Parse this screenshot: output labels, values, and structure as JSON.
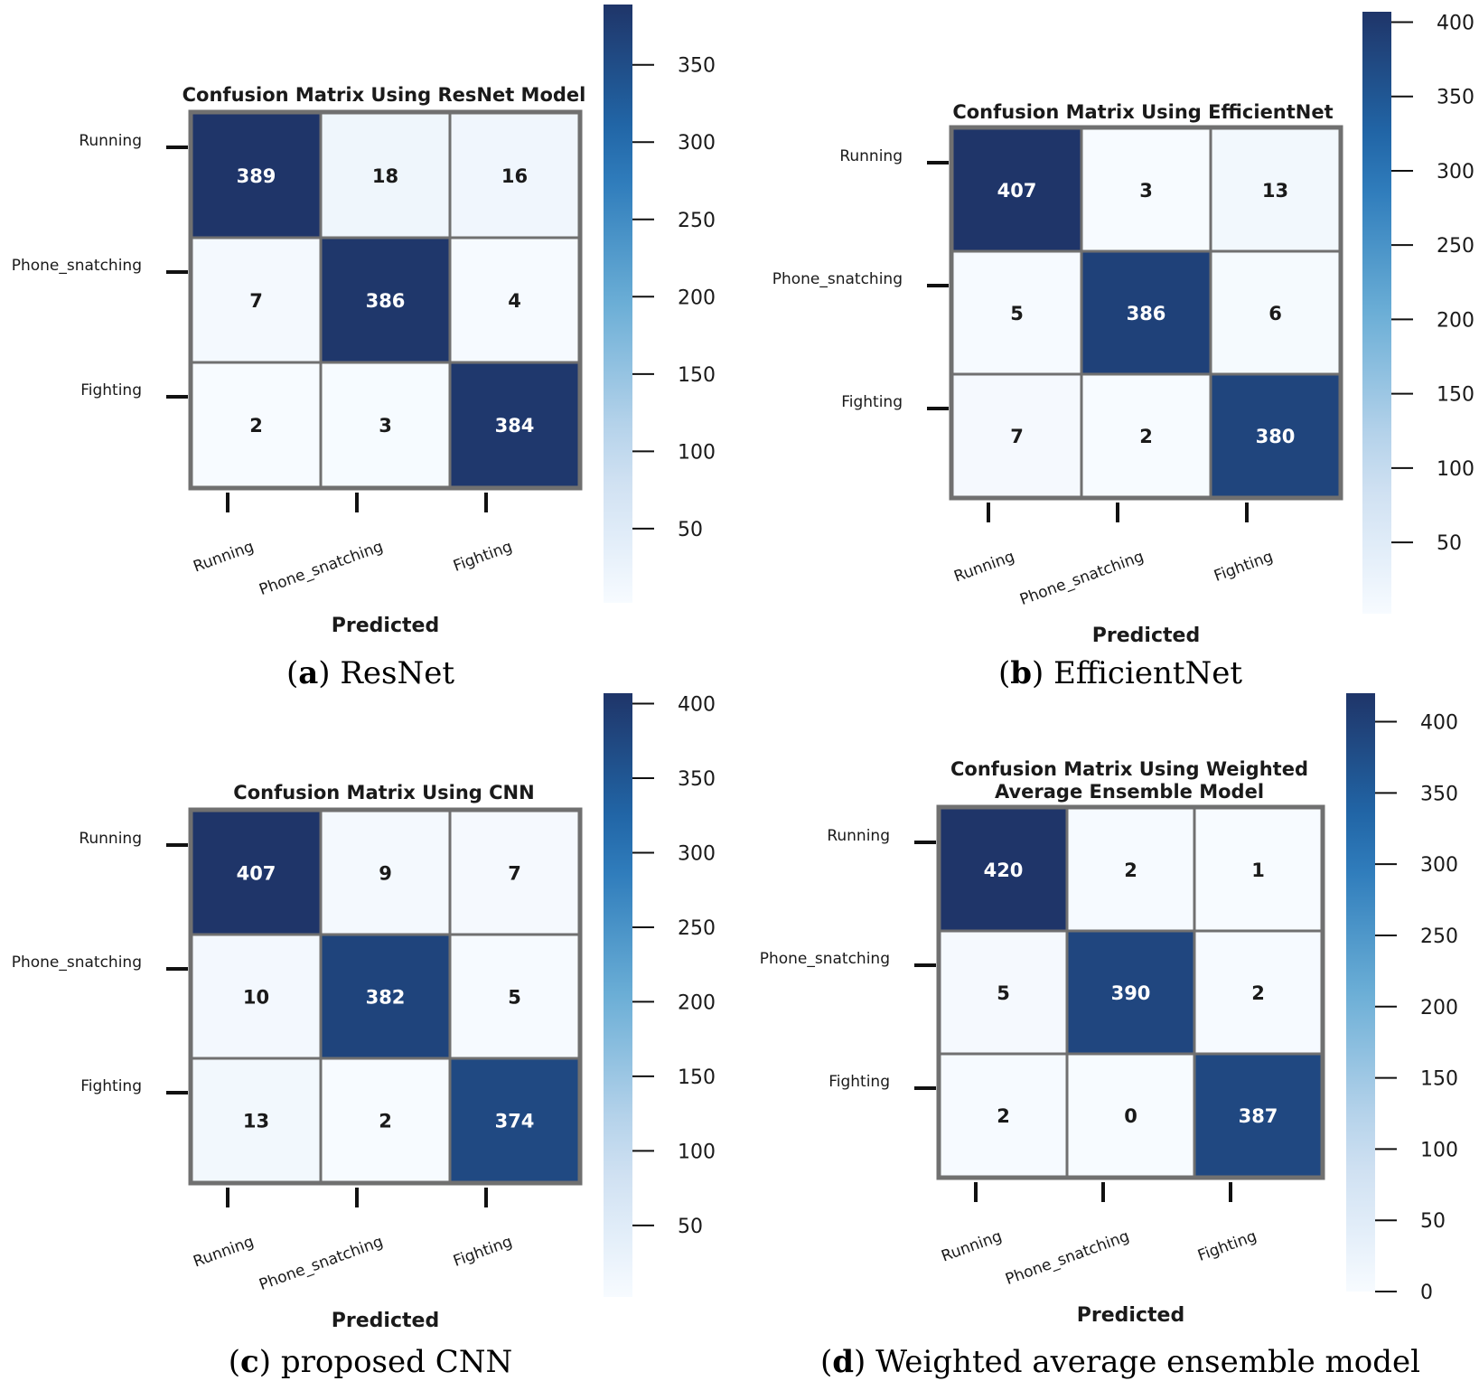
{
  "colors": {
    "cmap_low": "#f7fbff",
    "cmap_mid1": "#c6dbef",
    "cmap_mid2": "#6baed6",
    "cmap_mid3": "#2171b5",
    "cmap_high": "#1f3569",
    "cell_border": "#707070",
    "text_dark": "#1a1a1a",
    "text_light": "#ffffff"
  },
  "chart_data": [
    {
      "type": "heatmap",
      "title": "Confusion Matrix Using ResNet Model",
      "title_lines": [
        "Confusion Matrix Using ResNet Model"
      ],
      "row_labels": [
        "Running",
        "Phone_snatching",
        "Fighting"
      ],
      "col_labels": [
        "Running",
        "Phone_snatching",
        "Fighting"
      ],
      "xlabel": "Predicted",
      "values": [
        [
          389,
          18,
          16
        ],
        [
          7,
          386,
          4
        ],
        [
          2,
          3,
          384
        ]
      ],
      "vmin": 2,
      "vmax": 389,
      "colorbar_ticks": [
        50,
        100,
        150,
        200,
        250,
        300,
        350
      ],
      "caption_letter": "a",
      "caption_text": "ResNet"
    },
    {
      "type": "heatmap",
      "title": "Confusion Matrix Using EfficientNet",
      "title_lines": [
        "Confusion Matrix Using EfficientNet"
      ],
      "row_labels": [
        "Running",
        "Phone_snatching",
        "Fighting"
      ],
      "col_labels": [
        "Running",
        "Phone_snatching",
        "Fighting"
      ],
      "xlabel": "Predicted",
      "values": [
        [
          407,
          3,
          13
        ],
        [
          5,
          386,
          6
        ],
        [
          7,
          2,
          380
        ]
      ],
      "vmin": 2,
      "vmax": 407,
      "colorbar_ticks": [
        50,
        100,
        150,
        200,
        250,
        300,
        350,
        400
      ],
      "caption_letter": "b",
      "caption_text": "EfficientNet"
    },
    {
      "type": "heatmap",
      "title": "Confusion Matrix Using CNN",
      "title_lines": [
        "Confusion Matrix Using CNN"
      ],
      "row_labels": [
        "Running",
        "Phone_snatching",
        "Fighting"
      ],
      "col_labels": [
        "Running",
        "Phone_snatching",
        "Fighting"
      ],
      "xlabel": "Predicted",
      "values": [
        [
          407,
          9,
          7
        ],
        [
          10,
          382,
          5
        ],
        [
          13,
          2,
          374
        ]
      ],
      "vmin": 2,
      "vmax": 407,
      "colorbar_ticks": [
        50,
        100,
        150,
        200,
        250,
        300,
        350,
        400
      ],
      "caption_letter": "c",
      "caption_text": "proposed CNN"
    },
    {
      "type": "heatmap",
      "title": "Confusion Matrix Using Weighted Average Ensemble Model",
      "title_lines": [
        "Confusion Matrix Using Weighted",
        "Average Ensemble Model"
      ],
      "row_labels": [
        "Running",
        "Phone_snatching",
        "Fighting"
      ],
      "col_labels": [
        "Running",
        "Phone_snatching",
        "Fighting"
      ],
      "xlabel": "Predicted",
      "values": [
        [
          420,
          2,
          1
        ],
        [
          5,
          390,
          2
        ],
        [
          2,
          0,
          387
        ]
      ],
      "vmin": 0,
      "vmax": 420,
      "colorbar_ticks": [
        0,
        50,
        100,
        150,
        200,
        250,
        300,
        350,
        400
      ],
      "caption_letter": "d",
      "caption_text": "Weighted average ensemble model"
    }
  ]
}
